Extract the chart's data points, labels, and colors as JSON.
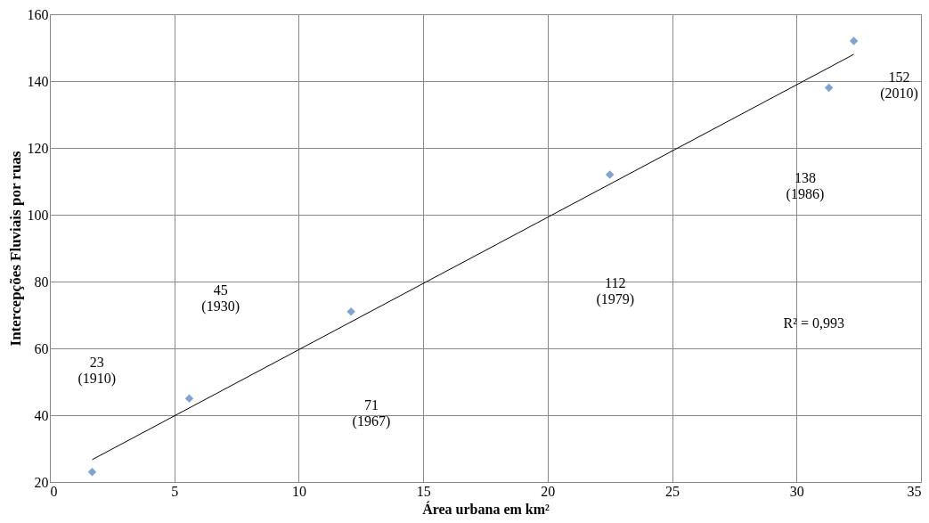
{
  "chart_data": {
    "type": "scatter",
    "xlabel": "Área urbana em km²",
    "ylabel": "Intercepções Fluviais por ruas",
    "xlim": [
      0,
      35
    ],
    "xticks": [
      0,
      5,
      10,
      15,
      20,
      25,
      30,
      35
    ],
    "ylim": [
      20,
      160
    ],
    "yticks": [
      20,
      40,
      60,
      80,
      100,
      120,
      140,
      160
    ],
    "grid": true,
    "series": [
      {
        "color": "#4a7ebb",
        "marker": "diamond",
        "x": [
          1.7,
          5.6,
          12.1,
          22.5,
          31.3,
          32.3
        ],
        "values": [
          23,
          45,
          71,
          112,
          138,
          152
        ]
      },
      {
        "type": "line",
        "color": "#000000",
        "x": [
          1.7,
          32.3
        ],
        "values": [
          26.7,
          148
        ]
      }
    ],
    "annotations": [
      "23\n(1910)",
      "45\n(1930)",
      "71\n(1967)",
      "112\n(1979)",
      "138\n(1986)",
      "152\n(2010)",
      "R² = 0,993"
    ]
  }
}
